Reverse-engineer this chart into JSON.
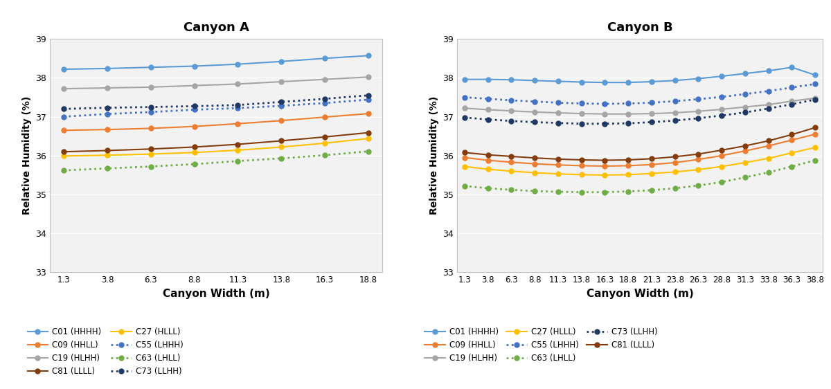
{
  "canyon_A": {
    "title": "Canyon A",
    "x": [
      1.3,
      3.8,
      6.3,
      8.8,
      11.3,
      13.8,
      16.3,
      18.8
    ],
    "series": {
      "C01 (HHHH)": [
        38.22,
        38.24,
        38.27,
        38.3,
        38.35,
        38.42,
        38.5,
        38.57
      ],
      "C19 (HLHH)": [
        37.72,
        37.74,
        37.76,
        37.8,
        37.84,
        37.9,
        37.96,
        38.02
      ],
      "C27 (HLLL)": [
        35.99,
        36.01,
        36.04,
        36.08,
        36.14,
        36.22,
        36.32,
        36.44
      ],
      "C63 (LHLL)": [
        35.62,
        35.67,
        35.72,
        35.78,
        35.86,
        35.93,
        36.01,
        36.11
      ],
      "C09 (HHLL)": [
        36.65,
        36.67,
        36.7,
        36.75,
        36.82,
        36.9,
        36.99,
        37.08
      ],
      "C81 (LLLL)": [
        36.1,
        36.13,
        36.17,
        36.22,
        36.29,
        36.38,
        36.48,
        36.59
      ],
      "C55 (LHHH)": [
        37.0,
        37.07,
        37.12,
        37.18,
        37.22,
        37.28,
        37.35,
        37.44
      ],
      "C73 (LLHH)": [
        37.2,
        37.23,
        37.25,
        37.27,
        37.3,
        37.38,
        37.46,
        37.55
      ]
    }
  },
  "canyon_B": {
    "title": "Canyon B",
    "x": [
      1.3,
      3.8,
      6.3,
      8.8,
      11.3,
      13.8,
      16.3,
      18.8,
      21.3,
      23.8,
      26.3,
      28.8,
      31.3,
      33.8,
      36.3,
      38.8
    ],
    "series": {
      "C01 (HHHH)": [
        37.96,
        37.96,
        37.95,
        37.93,
        37.91,
        37.89,
        37.88,
        37.88,
        37.9,
        37.93,
        37.98,
        38.04,
        38.11,
        38.18,
        38.27,
        38.07
      ],
      "C19 (HLHH)": [
        37.22,
        37.18,
        37.15,
        37.12,
        37.1,
        37.08,
        37.07,
        37.07,
        37.08,
        37.1,
        37.14,
        37.19,
        37.25,
        37.31,
        37.4,
        37.48
      ],
      "C27 (HLLL)": [
        35.72,
        35.65,
        35.6,
        35.56,
        35.53,
        35.51,
        35.5,
        35.51,
        35.54,
        35.58,
        35.64,
        35.72,
        35.82,
        35.93,
        36.07,
        36.21
      ],
      "C63 (LHLL)": [
        35.22,
        35.16,
        35.12,
        35.09,
        35.07,
        35.06,
        35.06,
        35.08,
        35.11,
        35.16,
        35.23,
        35.32,
        35.44,
        35.57,
        35.72,
        35.88
      ],
      "C09 (HHLL)": [
        35.95,
        35.88,
        35.83,
        35.79,
        35.76,
        35.74,
        35.73,
        35.74,
        35.77,
        35.82,
        35.9,
        36.0,
        36.12,
        36.25,
        36.4,
        36.55
      ],
      "C81 (LLLL)": [
        36.08,
        36.02,
        35.98,
        35.94,
        35.91,
        35.89,
        35.88,
        35.89,
        35.92,
        35.97,
        36.04,
        36.14,
        36.25,
        36.38,
        36.54,
        36.72
      ],
      "C55 (LHHH)": [
        37.5,
        37.46,
        37.42,
        37.39,
        37.36,
        37.34,
        37.33,
        37.34,
        37.36,
        37.4,
        37.45,
        37.51,
        37.58,
        37.66,
        37.75,
        37.84
      ],
      "C73 (LLHH)": [
        36.98,
        36.93,
        36.89,
        36.86,
        36.84,
        36.82,
        36.82,
        36.83,
        36.86,
        36.9,
        36.96,
        37.03,
        37.11,
        37.21,
        37.32,
        37.44
      ]
    }
  },
  "series_styles": {
    "C01 (HHHH)": {
      "color": "#5B9BD5",
      "linestyle": "solid",
      "linewidth": 1.5
    },
    "C19 (HLHH)": {
      "color": "#A5A5A5",
      "linestyle": "solid",
      "linewidth": 1.5
    },
    "C27 (HLLL)": {
      "color": "#FFC000",
      "linestyle": "solid",
      "linewidth": 1.5
    },
    "C63 (LHLL)": {
      "color": "#70AD47",
      "linestyle": "dotted",
      "linewidth": 2.0
    },
    "C09 (HHLL)": {
      "color": "#ED7D31",
      "linestyle": "solid",
      "linewidth": 1.5
    },
    "C81 (LLLL)": {
      "color": "#843C0C",
      "linestyle": "solid",
      "linewidth": 1.5
    },
    "C55 (LHHH)": {
      "color": "#4472C4",
      "linestyle": "dotted",
      "linewidth": 2.0
    },
    "C73 (LLHH)": {
      "color": "#1F3864",
      "linestyle": "dotted",
      "linewidth": 2.0
    }
  },
  "ylabel": "Relative Humidity (%)",
  "xlabel": "Canyon Width (m)",
  "ylim": [
    33,
    39
  ],
  "yticks": [
    33,
    34,
    35,
    36,
    37,
    38,
    39
  ],
  "plot_bg_color": "#F2F2F2",
  "fig_bg_color": "#FFFFFF",
  "order_A": [
    "C01 (HHHH)",
    "C09 (HHLL)",
    "C19 (HLHH)",
    "C81 (LLLL)",
    "C27 (HLLL)",
    "C55 (LHHH)",
    "C63 (LHLL)",
    "C73 (LLHH)"
  ],
  "order_B": [
    "C01 (HHHH)",
    "C09 (HHLL)",
    "C19 (HLHH)",
    "C27 (HLLL)",
    "C55 (LHHH)",
    "C63 (LHLL)",
    "C73 (LLHH)",
    "C81 (LLLL)"
  ]
}
